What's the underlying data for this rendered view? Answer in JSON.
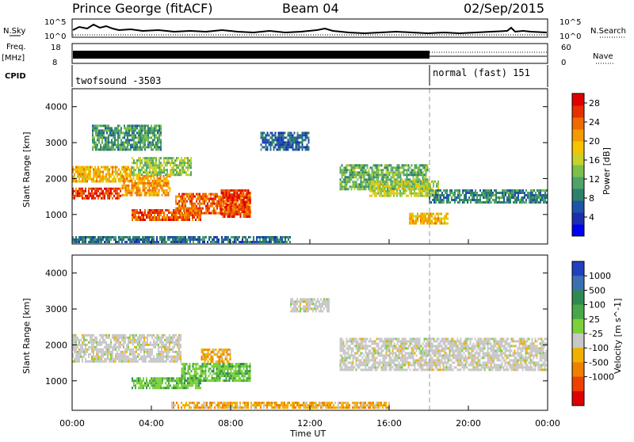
{
  "header": {
    "station": "Prince George (fitACF)",
    "beam": "Beam 04",
    "date": "02/Sep/2015"
  },
  "ancillary": {
    "nsky_label": "N.Sky",
    "nsky_axis": [
      "10^5",
      "10^0"
    ],
    "nsearch_label": "N.Search",
    "nsearch_axis": [
      "10^5",
      "10^0"
    ],
    "freq_label": "Freq.",
    "freq_unit": "[MHz]",
    "freq_axis": [
      "18",
      "8"
    ],
    "nave_label": "Nave",
    "nave_axis": [
      "60",
      "0"
    ],
    "cpid_label": "CPID",
    "cpid_modes": [
      {
        "text": "twofsound  -3503",
        "start_hour": 0
      },
      {
        "text": "normal (fast) 151",
        "start_hour": 18
      }
    ]
  },
  "x_axis": {
    "label": "Time UT",
    "ticks": [
      "00:00",
      "04:00",
      "08:00",
      "12:00",
      "16:00",
      "20:00",
      "00:00"
    ],
    "range_hours": [
      0,
      24
    ],
    "marker_hour": 18
  },
  "chart_data": [
    {
      "type": "heatmap",
      "name": "power",
      "ylabel": "Slant Range [km]",
      "ylim": [
        180,
        4500
      ],
      "yticks": [
        "1000",
        "2000",
        "3000",
        "4000"
      ],
      "colorbar": {
        "label": "Power [dB]",
        "ticks": [
          "4",
          "8",
          "12",
          "16",
          "20",
          "24",
          "28"
        ],
        "colors": [
          "#0000ee",
          "#1a2fb0",
          "#1f54a8",
          "#2e7f6a",
          "#4fa36a",
          "#7cc04a",
          "#c8d22a",
          "#f5c300",
          "#f59a00",
          "#ef6a00",
          "#e63000",
          "#e00000"
        ],
        "range": [
          0,
          30
        ]
      },
      "regions": [
        {
          "t0": 0.0,
          "t1": 3.0,
          "r0": 1900,
          "r1": 2350,
          "level": 20
        },
        {
          "t0": 0.0,
          "t1": 2.5,
          "r0": 1400,
          "r1": 1750,
          "level": 27
        },
        {
          "t0": 2.5,
          "t1": 5.0,
          "r0": 1500,
          "r1": 2100,
          "level": 22
        },
        {
          "t0": 3.0,
          "t1": 6.0,
          "r0": 2100,
          "r1": 2600,
          "level": 14
        },
        {
          "t0": 1.0,
          "t1": 4.5,
          "r0": 2800,
          "r1": 3500,
          "level": 10
        },
        {
          "t0": 3.0,
          "t1": 6.5,
          "r0": 800,
          "r1": 1150,
          "level": 26
        },
        {
          "t0": 5.2,
          "t1": 9.0,
          "r0": 1000,
          "r1": 1600,
          "level": 25
        },
        {
          "t0": 7.5,
          "t1": 9.0,
          "r0": 900,
          "r1": 1700,
          "level": 27
        },
        {
          "t0": 9.5,
          "t1": 12.0,
          "r0": 2800,
          "r1": 3300,
          "level": 6
        },
        {
          "t0": 13.5,
          "t1": 18.0,
          "r0": 1700,
          "r1": 2400,
          "level": 12
        },
        {
          "t0": 15.0,
          "t1": 18.5,
          "r0": 1500,
          "r1": 1950,
          "level": 16
        },
        {
          "t0": 17.0,
          "t1": 19.0,
          "r0": 700,
          "r1": 1050,
          "level": 20
        },
        {
          "t0": 18.0,
          "t1": 24.0,
          "r0": 1300,
          "r1": 1700,
          "level": 9
        },
        {
          "t0": 0.0,
          "t1": 11.0,
          "r0": 200,
          "r1": 400,
          "level": 7
        }
      ]
    },
    {
      "type": "heatmap",
      "name": "velocity",
      "ylabel": "Slant Range [km]",
      "ylim": [
        180,
        4500
      ],
      "yticks": [
        "1000",
        "2000",
        "3000",
        "4000"
      ],
      "colorbar": {
        "label": "Velocity [m s^-1]",
        "ticks": [
          "1000",
          "500",
          "100",
          "25",
          "-25",
          "-100",
          "-500",
          "-1000"
        ],
        "colors": [
          "#2040c0",
          "#3a70b0",
          "#2f8a50",
          "#48a848",
          "#7cd03a",
          "#c8c8c8",
          "#f0b000",
          "#f08000",
          "#f04000",
          "#e00000"
        ]
      },
      "regions": [
        {
          "t0": 0.0,
          "t1": 5.5,
          "r0": 1500,
          "r1": 2300,
          "v": 0
        },
        {
          "t0": 3.0,
          "t1": 6.5,
          "r0": 800,
          "r1": 1100,
          "v": 150
        },
        {
          "t0": 5.5,
          "t1": 9.0,
          "r0": 1000,
          "r1": 1500,
          "v": 150
        },
        {
          "t0": 6.5,
          "t1": 8.0,
          "r0": 1500,
          "r1": 1900,
          "v": -200
        },
        {
          "t0": 11.0,
          "t1": 13.0,
          "r0": 2900,
          "r1": 3300,
          "v": 0
        },
        {
          "t0": 13.5,
          "t1": 24.0,
          "r0": 1300,
          "r1": 2200,
          "v": 0
        },
        {
          "t0": 5.0,
          "t1": 16.0,
          "r0": 200,
          "r1": 420,
          "v": -150
        }
      ]
    }
  ]
}
